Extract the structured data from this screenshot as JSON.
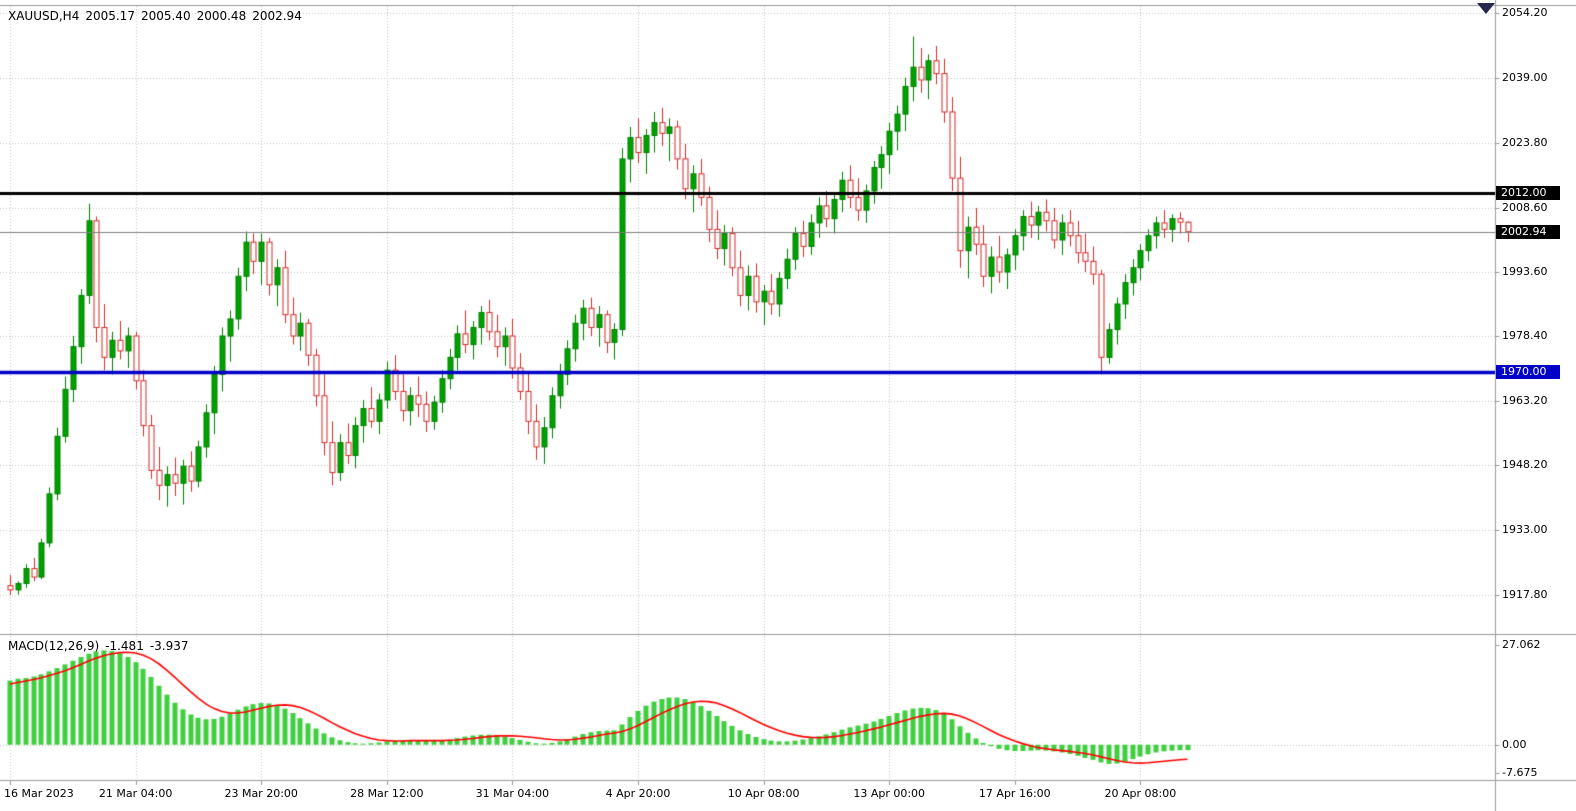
{
  "header": {
    "symbol_period": "XAUUSD,H4",
    "open": "2005.17",
    "high": "2005.40",
    "low": "2000.48",
    "close": "2002.94"
  },
  "indicator_label": {
    "name": "MACD(12,26,9)",
    "macd": "-1.481",
    "signal": "-3.937"
  },
  "colors": {
    "background": "#ffffff",
    "grid": "#c6c6c6",
    "bull": "#008000",
    "bull_fill": "#00a000",
    "bear": "#d52b2b",
    "bear_fill": "#ffffff",
    "histogram": "#3fcf3f",
    "signal_line": "#ff0000",
    "axis_line": "#9a9a9a",
    "axis_text": "#000000",
    "shift_marker": "#26264f"
  },
  "chart_data": {
    "type": "candlestick",
    "symbol": "XAUUSD",
    "timeframe": "H4",
    "info_ohlc": {
      "open": 2005.17,
      "high": 2005.4,
      "low": 2000.48,
      "close": 2002.94
    },
    "price_ticks": [
      {
        "label": "2054.20",
        "value": 2054.2
      },
      {
        "label": "2039.00",
        "value": 2039.0
      },
      {
        "label": "2023.80",
        "value": 2023.8
      },
      {
        "label": "2008.60",
        "value": 2008.6
      },
      {
        "label": "1993.60",
        "value": 1993.6
      },
      {
        "label": "1978.40",
        "value": 1978.4
      },
      {
        "label": "1963.20",
        "value": 1963.2
      },
      {
        "label": "1948.20",
        "value": 1948.2
      },
      {
        "label": "1933.00",
        "value": 1933.0
      },
      {
        "label": "1917.80",
        "value": 1917.8
      }
    ],
    "time_ticks": [
      {
        "index": 0,
        "label": "16 Mar 2023"
      },
      {
        "index": 16,
        "label": "21 Mar 04:00"
      },
      {
        "index": 32,
        "label": "23 Mar 20:00"
      },
      {
        "index": 48,
        "label": "28 Mar 12:00"
      },
      {
        "index": 64,
        "label": "31 Mar 04:00"
      },
      {
        "index": 80,
        "label": "4 Apr 20:00"
      },
      {
        "index": 96,
        "label": "10 Apr 08:00"
      },
      {
        "index": 112,
        "label": "13 Apr 00:00"
      },
      {
        "index": 128,
        "label": "17 Apr 16:00"
      },
      {
        "index": 144,
        "label": "20 Apr 08:00"
      }
    ],
    "horizontal_lines": [
      {
        "price": 2012.0,
        "label": "2012.00",
        "color": "#000000",
        "width": 3
      },
      {
        "price": 1970.0,
        "label": "1970.00",
        "color": "#0000c8",
        "width": 3.5
      }
    ],
    "current_price": {
      "value": 2002.94,
      "label": "2002.94",
      "line_color": "#808080",
      "badge_color": "#000000"
    },
    "candles": [
      [
        1920.0,
        1922.5,
        1917.8,
        1919.0
      ],
      [
        1919.0,
        1921.0,
        1917.9,
        1920.5
      ],
      [
        1920.5,
        1925.0,
        1919.5,
        1924.0
      ],
      [
        1924.0,
        1926.5,
        1921.0,
        1922.0
      ],
      [
        1922.0,
        1931.0,
        1921.5,
        1930.0
      ],
      [
        1930.0,
        1943.0,
        1929.0,
        1941.5
      ],
      [
        1941.5,
        1957.0,
        1940.0,
        1955.0
      ],
      [
        1955.0,
        1969.0,
        1953.5,
        1966.0
      ],
      [
        1966.0,
        1978.5,
        1963.0,
        1976.0
      ],
      [
        1976.0,
        1989.5,
        1972.0,
        1988.0
      ],
      [
        1988.0,
        2009.5,
        1986.0,
        2005.5
      ],
      [
        2005.5,
        2006.5,
        1977.0,
        1980.5
      ],
      [
        1980.5,
        1986.0,
        1970.5,
        1973.5
      ],
      [
        1973.5,
        1979.5,
        1969.5,
        1977.5
      ],
      [
        1977.5,
        1982.0,
        1973.0,
        1975.0
      ],
      [
        1975.0,
        1980.5,
        1971.0,
        1978.5
      ],
      [
        1978.5,
        1979.5,
        1966.0,
        1968.0
      ],
      [
        1968.0,
        1970.5,
        1955.0,
        1957.5
      ],
      [
        1957.5,
        1960.0,
        1945.0,
        1947.0
      ],
      [
        1947.0,
        1952.5,
        1940.0,
        1943.5
      ],
      [
        1943.5,
        1948.0,
        1938.5,
        1946.0
      ],
      [
        1946.0,
        1950.0,
        1941.0,
        1944.0
      ],
      [
        1944.0,
        1949.5,
        1939.0,
        1948.0
      ],
      [
        1948.0,
        1951.5,
        1942.0,
        1944.5
      ],
      [
        1944.5,
        1954.0,
        1943.0,
        1952.5
      ],
      [
        1952.5,
        1962.5,
        1950.0,
        1960.5
      ],
      [
        1960.5,
        1971.5,
        1955.5,
        1969.5
      ],
      [
        1969.5,
        1980.5,
        1965.5,
        1978.5
      ],
      [
        1978.5,
        1984.5,
        1972.5,
        1982.5
      ],
      [
        1982.5,
        1994.5,
        1980.0,
        1992.5
      ],
      [
        1992.5,
        2003.0,
        1989.0,
        2000.5
      ],
      [
        2000.5,
        2002.5,
        1993.0,
        1996.0
      ],
      [
        1996.0,
        2002.5,
        1990.5,
        2000.5
      ],
      [
        2000.5,
        2001.5,
        1988.0,
        1990.5
      ],
      [
        1990.5,
        1996.5,
        1985.5,
        1994.5
      ],
      [
        1994.5,
        1998.5,
        1981.5,
        1983.5
      ],
      [
        1983.5,
        1987.5,
        1976.5,
        1978.5
      ],
      [
        1978.5,
        1984.0,
        1975.0,
        1981.5
      ],
      [
        1981.5,
        1982.5,
        1971.5,
        1974.0
      ],
      [
        1974.0,
        1975.5,
        1962.0,
        1964.5
      ],
      [
        1964.5,
        1969.5,
        1950.5,
        1953.5
      ],
      [
        1953.5,
        1958.5,
        1943.5,
        1946.5
      ],
      [
        1946.5,
        1955.5,
        1944.5,
        1953.5
      ],
      [
        1953.5,
        1958.0,
        1948.5,
        1950.5
      ],
      [
        1950.5,
        1959.5,
        1947.5,
        1957.5
      ],
      [
        1957.5,
        1963.5,
        1953.5,
        1961.5
      ],
      [
        1961.5,
        1966.5,
        1957.0,
        1958.5
      ],
      [
        1958.5,
        1965.0,
        1955.5,
        1963.5
      ],
      [
        1963.5,
        1972.5,
        1961.5,
        1970.5
      ],
      [
        1970.5,
        1974.0,
        1963.5,
        1965.5
      ],
      [
        1965.5,
        1969.5,
        1958.5,
        1961.0
      ],
      [
        1961.0,
        1966.5,
        1957.5,
        1964.5
      ],
      [
        1964.5,
        1969.0,
        1959.5,
        1962.5
      ],
      [
        1962.5,
        1965.5,
        1956.0,
        1958.5
      ],
      [
        1958.5,
        1964.5,
        1956.5,
        1963.0
      ],
      [
        1963.0,
        1970.5,
        1960.5,
        1968.5
      ],
      [
        1968.5,
        1975.5,
        1966.0,
        1973.5
      ],
      [
        1973.5,
        1981.0,
        1970.5,
        1979.0
      ],
      [
        1979.0,
        1984.5,
        1974.5,
        1976.5
      ],
      [
        1976.5,
        1982.0,
        1973.0,
        1980.5
      ],
      [
        1980.5,
        1985.5,
        1976.5,
        1984.0
      ],
      [
        1984.0,
        1987.0,
        1977.5,
        1979.5
      ],
      [
        1979.5,
        1983.5,
        1973.5,
        1976.0
      ],
      [
        1976.0,
        1980.5,
        1971.5,
        1978.5
      ],
      [
        1978.5,
        1982.5,
        1968.5,
        1971.0
      ],
      [
        1971.0,
        1974.5,
        1963.5,
        1965.5
      ],
      [
        1965.5,
        1970.0,
        1955.5,
        1958.5
      ],
      [
        1958.5,
        1962.5,
        1949.5,
        1952.5
      ],
      [
        1952.5,
        1959.5,
        1948.5,
        1957.0
      ],
      [
        1957.0,
        1966.5,
        1954.5,
        1964.5
      ],
      [
        1964.5,
        1972.0,
        1961.5,
        1969.5
      ],
      [
        1969.5,
        1977.5,
        1967.0,
        1975.5
      ],
      [
        1975.5,
        1983.5,
        1972.5,
        1981.5
      ],
      [
        1981.5,
        1987.0,
        1977.5,
        1985.0
      ],
      [
        1985.0,
        1987.5,
        1978.5,
        1980.5
      ],
      [
        1980.5,
        1985.5,
        1976.0,
        1983.5
      ],
      [
        1983.5,
        1984.5,
        1974.5,
        1977.0
      ],
      [
        1977.0,
        1981.5,
        1973.0,
        1980.0
      ],
      [
        1980.0,
        2022.5,
        1978.5,
        2020.0
      ],
      [
        2020.0,
        2027.5,
        2014.5,
        2025.0
      ],
      [
        2025.0,
        2029.5,
        2019.0,
        2021.5
      ],
      [
        2021.5,
        2027.0,
        2016.5,
        2025.5
      ],
      [
        2025.5,
        2031.0,
        2021.5,
        2028.5
      ],
      [
        2028.5,
        2032.0,
        2023.0,
        2026.0
      ],
      [
        2026.0,
        2029.5,
        2019.5,
        2027.5
      ],
      [
        2027.5,
        2029.0,
        2017.5,
        2020.0
      ],
      [
        2020.0,
        2023.5,
        2010.5,
        2013.0
      ],
      [
        2013.0,
        2018.5,
        2007.5,
        2016.5
      ],
      [
        2016.5,
        2020.0,
        2009.0,
        2011.0
      ],
      [
        2011.0,
        2013.5,
        2000.5,
        2003.5
      ],
      [
        2003.5,
        2008.0,
        1996.5,
        1999.0
      ],
      [
        1999.0,
        2004.5,
        1995.0,
        2002.5
      ],
      [
        2002.5,
        2004.0,
        1992.5,
        1994.5
      ],
      [
        1994.5,
        1998.5,
        1985.5,
        1988.0
      ],
      [
        1988.0,
        1995.0,
        1984.5,
        1992.5
      ],
      [
        1992.5,
        1995.5,
        1984.0,
        1986.5
      ],
      [
        1986.5,
        1990.5,
        1981.0,
        1989.0
      ],
      [
        1989.0,
        1993.0,
        1983.5,
        1986.0
      ],
      [
        1986.0,
        1993.5,
        1983.0,
        1992.0
      ],
      [
        1992.0,
        1999.0,
        1989.5,
        1996.5
      ],
      [
        1996.5,
        2004.0,
        1994.0,
        2002.5
      ],
      [
        2002.5,
        2005.5,
        1997.0,
        1999.5
      ],
      [
        1999.5,
        2007.0,
        1997.5,
        2005.0
      ],
      [
        2005.0,
        2011.0,
        2001.5,
        2009.0
      ],
      [
        2009.0,
        2012.5,
        2004.0,
        2006.0
      ],
      [
        2006.0,
        2012.0,
        2002.5,
        2010.5
      ],
      [
        2010.5,
        2017.0,
        2007.5,
        2015.0
      ],
      [
        2015.0,
        2018.5,
        2008.5,
        2011.0
      ],
      [
        2011.0,
        2015.5,
        2005.5,
        2008.0
      ],
      [
        2008.0,
        2014.0,
        2005.0,
        2012.5
      ],
      [
        2012.5,
        2019.5,
        2009.5,
        2018.0
      ],
      [
        2018.0,
        2023.0,
        2013.0,
        2021.0
      ],
      [
        2021.0,
        2028.5,
        2016.5,
        2026.5
      ],
      [
        2026.5,
        2032.5,
        2022.0,
        2030.5
      ],
      [
        2030.5,
        2039.0,
        2026.5,
        2037.0
      ],
      [
        2037.0,
        2048.7,
        2033.5,
        2041.5
      ],
      [
        2041.5,
        2046.0,
        2035.5,
        2038.5
      ],
      [
        2038.5,
        2044.5,
        2034.0,
        2043.0
      ],
      [
        2043.0,
        2046.5,
        2037.5,
        2040.0
      ],
      [
        2040.0,
        2043.5,
        2028.5,
        2031.0
      ],
      [
        2031.0,
        2034.5,
        2012.5,
        2015.5
      ],
      [
        2015.5,
        2020.5,
        1994.5,
        1998.5
      ],
      [
        1998.5,
        2006.5,
        1992.0,
        2004.0
      ],
      [
        2004.0,
        2008.5,
        1997.5,
        2000.0
      ],
      [
        2000.0,
        2004.5,
        1990.0,
        1992.5
      ],
      [
        1992.5,
        1999.5,
        1988.5,
        1997.0
      ],
      [
        1997.0,
        2002.0,
        1991.0,
        1993.5
      ],
      [
        1993.5,
        1999.0,
        1989.5,
        1997.5
      ],
      [
        1997.5,
        2003.5,
        1994.0,
        2002.0
      ],
      [
        2002.0,
        2008.0,
        1998.5,
        2006.5
      ],
      [
        2006.5,
        2010.0,
        2001.5,
        2004.5
      ],
      [
        2004.5,
        2009.0,
        2001.0,
        2007.5
      ],
      [
        2007.5,
        2010.5,
        2003.0,
        2005.5
      ],
      [
        2005.5,
        2008.5,
        1999.0,
        2001.0
      ],
      [
        2001.0,
        2007.0,
        1997.5,
        2005.0
      ],
      [
        2005.0,
        2008.0,
        1999.5,
        2002.0
      ],
      [
        2002.0,
        2005.5,
        1995.5,
        1998.0
      ],
      [
        1998.0,
        2002.5,
        1993.5,
        1996.0
      ],
      [
        1996.0,
        1999.5,
        1990.5,
        1993.0
      ],
      [
        1993.0,
        1994.0,
        1969.5,
        1973.5
      ],
      [
        1973.5,
        1981.5,
        1972.0,
        1980.0
      ],
      [
        1980.0,
        1987.5,
        1976.5,
        1986.0
      ],
      [
        1986.0,
        1993.0,
        1982.5,
        1991.0
      ],
      [
        1991.0,
        1996.5,
        1988.0,
        1994.5
      ],
      [
        1994.5,
        2000.0,
        1991.5,
        1998.5
      ],
      [
        1998.5,
        2003.5,
        1996.0,
        2002.0
      ],
      [
        2002.0,
        2006.5,
        1999.0,
        2005.0
      ],
      [
        2005.0,
        2008.0,
        2001.5,
        2003.5
      ],
      [
        2003.5,
        2007.0,
        2000.5,
        2006.0
      ],
      [
        2006.0,
        2007.5,
        2002.5,
        2005.17
      ],
      [
        2005.17,
        2005.4,
        2000.48,
        2002.94
      ]
    ],
    "indicator": {
      "type": "macd_histogram",
      "name": "MACD(12,26,9)",
      "macd_value": -1.481,
      "signal_value": -3.937,
      "ticks": [
        {
          "label": "27.062",
          "value": 27.062
        },
        {
          "label": "0.00",
          "value": 0
        },
        {
          "label": "-7.675",
          "value": -7.675
        }
      ],
      "histogram": [
        17.4,
        17.9,
        18.1,
        18.5,
        19.1,
        19.9,
        20.8,
        21.8,
        22.8,
        23.8,
        24.7,
        25.3,
        25.6,
        25.4,
        24.8,
        23.8,
        22.4,
        20.6,
        18.4,
        16.0,
        13.6,
        11.4,
        9.6,
        8.2,
        7.3,
        6.9,
        7.0,
        7.6,
        8.5,
        9.5,
        10.4,
        11.0,
        11.3,
        11.2,
        10.7,
        9.8,
        8.6,
        7.2,
        5.8,
        4.4,
        3.1,
        2.0,
        1.2,
        0.7,
        0.4,
        0.3,
        0.4,
        0.6,
        0.9,
        1.1,
        1.2,
        1.2,
        1.1,
        1.0,
        1.0,
        1.1,
        1.4,
        1.8,
        2.2,
        2.5,
        2.7,
        2.7,
        2.5,
        2.2,
        1.8,
        1.3,
        0.8,
        0.4,
        0.3,
        0.5,
        0.9,
        1.5,
        2.2,
        2.9,
        3.4,
        3.7,
        3.8,
        3.9,
        5.5,
        7.5,
        9.2,
        10.6,
        11.7,
        12.4,
        12.8,
        12.8,
        12.4,
        11.6,
        10.5,
        9.2,
        7.8,
        6.4,
        5.1,
        3.9,
        2.9,
        2.1,
        1.5,
        1.1,
        0.9,
        0.9,
        1.1,
        1.4,
        1.8,
        2.3,
        2.8,
        3.4,
        4.1,
        4.7,
        5.2,
        5.7,
        6.3,
        7.0,
        7.8,
        8.6,
        9.3,
        9.8,
        10.0,
        9.9,
        9.4,
        8.4,
        6.9,
        5.0,
        3.2,
        1.7,
        0.5,
        -0.4,
        -1.1,
        -1.5,
        -1.7,
        -1.7,
        -1.6,
        -1.5,
        -1.6,
        -1.8,
        -2.1,
        -2.5,
        -3.0,
        -3.6,
        -4.1,
        -4.8,
        -5.2,
        -5.1,
        -4.6,
        -3.9,
        -3.2,
        -2.6,
        -2.1,
        -1.8,
        -1.6,
        -1.5,
        -1.481
      ],
      "signal": [
        16.5,
        16.9,
        17.3,
        17.7,
        18.2,
        18.8,
        19.4,
        20.1,
        20.9,
        21.8,
        22.7,
        23.5,
        24.2,
        24.7,
        25.0,
        25.1,
        24.9,
        24.3,
        23.3,
        21.9,
        20.2,
        18.3,
        16.3,
        14.4,
        12.6,
        11.0,
        9.8,
        9.0,
        8.6,
        8.6,
        8.9,
        9.4,
        9.9,
        10.4,
        10.7,
        10.8,
        10.6,
        10.1,
        9.3,
        8.3,
        7.2,
        6.0,
        4.9,
        3.9,
        3.0,
        2.3,
        1.7,
        1.3,
        1.1,
        1.0,
        1.0,
        1.1,
        1.1,
        1.1,
        1.1,
        1.1,
        1.2,
        1.3,
        1.5,
        1.7,
        2.0,
        2.2,
        2.4,
        2.4,
        2.4,
        2.3,
        2.1,
        1.9,
        1.6,
        1.4,
        1.3,
        1.3,
        1.5,
        1.8,
        2.1,
        2.5,
        2.9,
        3.2,
        3.6,
        4.3,
        5.2,
        6.3,
        7.4,
        8.5,
        9.5,
        10.4,
        11.1,
        11.6,
        11.8,
        11.7,
        11.3,
        10.6,
        9.7,
        8.7,
        7.6,
        6.5,
        5.5,
        4.6,
        3.8,
        3.1,
        2.6,
        2.2,
        2.0,
        1.9,
        2.0,
        2.2,
        2.5,
        2.9,
        3.3,
        3.8,
        4.3,
        4.8,
        5.4,
        6.0,
        6.6,
        7.2,
        7.7,
        8.1,
        8.4,
        8.5,
        8.3,
        7.8,
        7.0,
        6.0,
        4.9,
        3.8,
        2.7,
        1.8,
        1.0,
        0.3,
        -0.3,
        -0.8,
        -1.1,
        -1.4,
        -1.6,
        -1.8,
        -2.1,
        -2.4,
        -2.8,
        -3.3,
        -3.8,
        -4.3,
        -4.7,
        -4.9,
        -5.0,
        -4.9,
        -4.7,
        -4.5,
        -4.3,
        -4.1,
        -3.937
      ]
    }
  }
}
